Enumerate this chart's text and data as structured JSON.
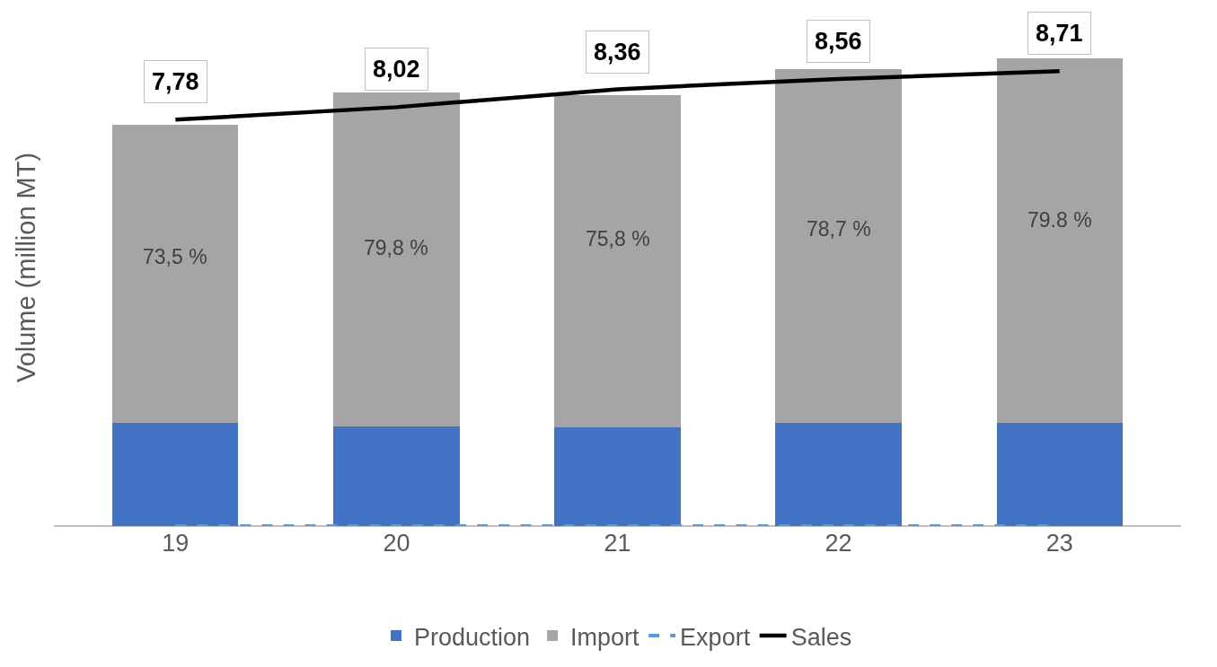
{
  "chart_data": {
    "type": "bar",
    "stacked": true,
    "ylabel": "Volume (million MT)",
    "categories": [
      "19",
      "20",
      "21",
      "22",
      "23"
    ],
    "ylim": [
      0,
      9.9
    ],
    "tick_labels": "x",
    "grid": false,
    "legend": "bottom",
    "series": [
      {
        "name": "Production",
        "color": "#4472c4",
        "values": [
          1.97,
          1.9,
          1.89,
          1.97,
          1.97
        ]
      },
      {
        "name": "Import",
        "color": "#a5a5a5",
        "values": [
          5.72,
          6.41,
          6.36,
          6.77,
          6.98
        ]
      },
      {
        "name": "Export",
        "type": "line",
        "color": "#5b9bd5",
        "line_style": "dashed",
        "marker": "none",
        "values": [
          0,
          0,
          0,
          0,
          0
        ]
      },
      {
        "name": "Sales",
        "type": "line",
        "color": "#000000",
        "line_style": "solid",
        "marker": "none",
        "values": [
          7.78,
          8.02,
          8.36,
          8.56,
          8.71
        ],
        "value_labels": [
          "7,78",
          "8,02",
          "8,36",
          "8,56",
          "8,71"
        ]
      }
    ],
    "annotations": [
      "73,5 %",
      "79,8 %",
      "75,8 %",
      "78,7 %",
      "79.8 %"
    ]
  }
}
